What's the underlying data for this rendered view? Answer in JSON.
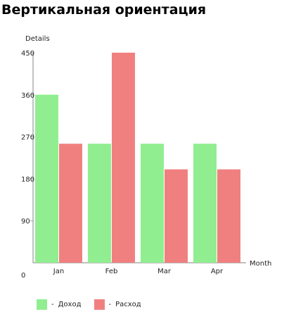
{
  "page": {
    "title": "Вертикальная ориентация"
  },
  "chart_data": {
    "type": "bar",
    "ylabel": "Details",
    "xlabel": "Month",
    "categories": [
      "Jan",
      "Feb",
      "Mar",
      "Apr"
    ],
    "ylim": [
      0,
      450
    ],
    "yticks": [
      0,
      90,
      180,
      270,
      360,
      450
    ],
    "series": [
      {
        "name": "Доход",
        "color": "#90EE90",
        "values": [
          360,
          255,
          255,
          255
        ]
      },
      {
        "name": "Расход",
        "color": "#F08080",
        "values": [
          255,
          450,
          200,
          200
        ]
      }
    ],
    "legend": {
      "position": "bottom-left",
      "separator": "-"
    }
  }
}
